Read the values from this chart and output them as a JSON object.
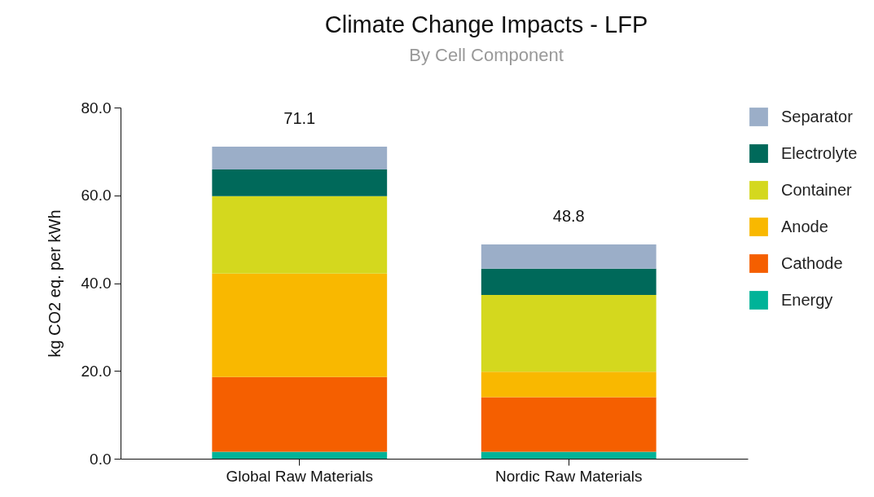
{
  "chart_data": {
    "type": "bar",
    "title": "Climate Change Impacts - LFP",
    "subtitle": "By Cell Component",
    "ylabel": "kg CO2 eq. per kWh",
    "categories": [
      "Global Raw Materials",
      "Nordic Raw Materials"
    ],
    "stacked": true,
    "series": [
      {
        "name": "Energy",
        "color": "#00b398",
        "values": [
          1.6,
          1.6
        ]
      },
      {
        "name": "Cathode",
        "color": "#f55f00",
        "values": [
          17.0,
          12.4
        ]
      },
      {
        "name": "Anode",
        "color": "#f9b800",
        "values": [
          23.6,
          5.8
        ]
      },
      {
        "name": "Container",
        "color": "#d4d81e",
        "values": [
          17.6,
          17.5
        ]
      },
      {
        "name": "Electrolyte",
        "color": "#00695a",
        "values": [
          6.1,
          6.0
        ]
      },
      {
        "name": "Separator",
        "color": "#9baec8",
        "values": [
          5.2,
          5.5
        ]
      }
    ],
    "totals": [
      "71.1",
      "48.8"
    ],
    "ylim": [
      0,
      80
    ],
    "yticks": [
      {
        "value": 0,
        "label": "0.0"
      },
      {
        "value": 20,
        "label": "20.0"
      },
      {
        "value": 40,
        "label": "40.0"
      },
      {
        "value": 60,
        "label": "60.0"
      },
      {
        "value": 80,
        "label": "80.0"
      }
    ],
    "grid": false,
    "legend": "right"
  }
}
